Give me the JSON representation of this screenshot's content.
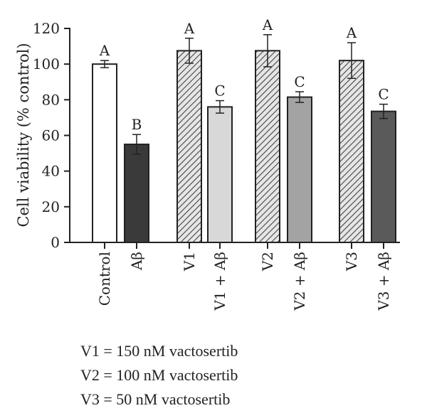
{
  "chart_data": {
    "type": "bar",
    "ylabel": "Cell viability (% control)",
    "xlabel": "",
    "ylim": [
      0,
      120
    ],
    "yticks": [
      "0",
      "20",
      "40",
      "60",
      "80",
      "100",
      "120"
    ],
    "categories": [
      "Control",
      "Aβ",
      "V1",
      "V1 + Aβ",
      "V2",
      "V2 + Aβ",
      "V3",
      "V3 + Aβ"
    ],
    "values": [
      100,
      55,
      107.5,
      76,
      107.5,
      81.5,
      102,
      73.5
    ],
    "errors": [
      2,
      5.5,
      7,
      3.5,
      9,
      3,
      10,
      4
    ],
    "sig_labels": [
      "A",
      "B",
      "A",
      "C",
      "A",
      "C",
      "A",
      "C"
    ],
    "fills": [
      "#ffffff",
      "#3a3a3a",
      "hatch",
      "#d8d8d8",
      "hatch",
      "#a3a3a3",
      "hatch",
      "#5a5a5a"
    ]
  },
  "notes": [
    "V1 = 150 nM vactosertib",
    "V2 = 100 nM vactosertib",
    "V3 = 50 nM vactosertib"
  ]
}
